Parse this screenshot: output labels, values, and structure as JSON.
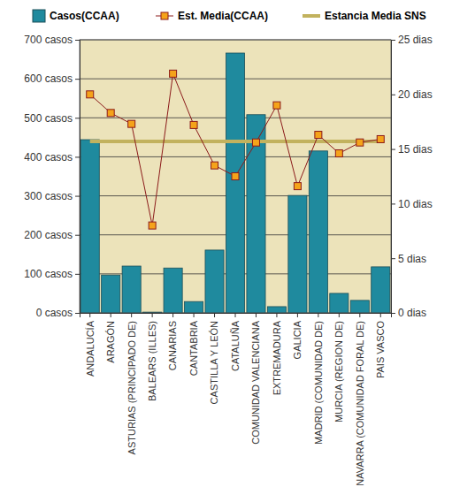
{
  "chart_data": {
    "type": "bar",
    "categories": [
      "ANDALUCÍA",
      "ARAGÓN",
      "ASTURIAS (PRINCIPADO DE)",
      "BALEARS (ILLES)",
      "CANARIAS",
      "CANTABRIA",
      "CASTILLA Y LEÓN",
      "CATALUÑA",
      "COMUNIDAD VALENCIANA",
      "EXTREMADURA",
      "GALICIA",
      "MADRID (COMUNIDAD DE)",
      "MURCIA (REGION DE)",
      "NAVARRA (COMUNIDAD FORAL DE)",
      "PAIS VASCO"
    ],
    "series": [
      {
        "name": "Casos(CCAA)",
        "type": "bar",
        "color": "#1f8a9e",
        "values": [
          444,
          97,
          120,
          2,
          115,
          29,
          161,
          666,
          508,
          16,
          301,
          415,
          50,
          32,
          118
        ]
      },
      {
        "name": "Est. Media(CCAA)",
        "type": "line",
        "axis": "y2",
        "color": "#8b1a1a",
        "marker": "square",
        "values": [
          20.0,
          18.3,
          17.3,
          8.0,
          21.9,
          17.2,
          13.5,
          12.5,
          15.6,
          19.0,
          11.6,
          16.3,
          14.6,
          15.6,
          15.9
        ]
      },
      {
        "name": "Estancia Media SNS",
        "type": "line",
        "axis": "y2",
        "color": "#c2b25e",
        "values": [
          15.7,
          15.7,
          15.7,
          15.7,
          15.7,
          15.7,
          15.7,
          15.7,
          15.7,
          15.7,
          15.7,
          15.7,
          15.7,
          15.7,
          15.7
        ]
      }
    ],
    "ylim": [
      0,
      700
    ],
    "yticks": [
      {
        "value": 0,
        "label": "0 casos"
      },
      {
        "value": 100,
        "label": "100 casos"
      },
      {
        "value": 200,
        "label": "200 casos"
      },
      {
        "value": 300,
        "label": "300 casos"
      },
      {
        "value": 400,
        "label": "400 casos"
      },
      {
        "value": 500,
        "label": "500 casos"
      },
      {
        "value": 600,
        "label": "600 casos"
      },
      {
        "value": 700,
        "label": "700 casos"
      }
    ],
    "y2lim": [
      0,
      25
    ],
    "y2ticks": [
      {
        "value": 0,
        "label": "0 dias"
      },
      {
        "value": 5,
        "label": "5 dias"
      },
      {
        "value": 10,
        "label": "10 dias"
      },
      {
        "value": 15,
        "label": "15 dias"
      },
      {
        "value": 20,
        "label": "20 dias"
      },
      {
        "value": 25,
        "label": "25 dias"
      }
    ],
    "grid": true,
    "legend": "top"
  }
}
